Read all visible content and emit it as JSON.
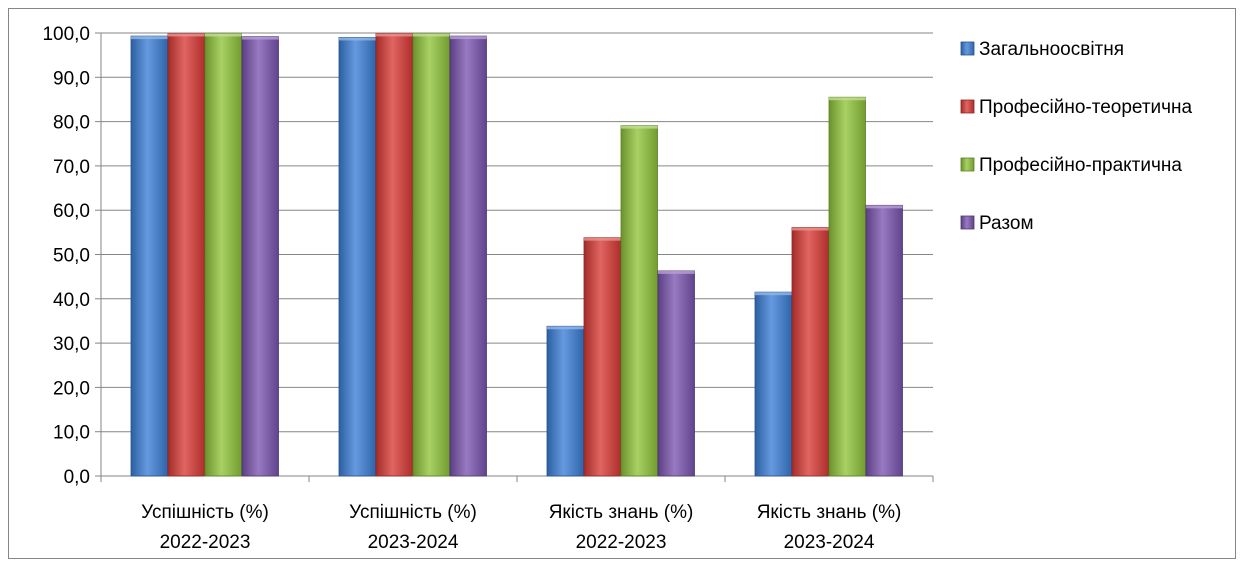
{
  "chart_data": {
    "type": "bar",
    "categories": [
      [
        "Успішність (%)",
        "2022-2023"
      ],
      [
        "Успішність (%)",
        "2023-2024"
      ],
      [
        "Якість знань (%)",
        "2022-2023"
      ],
      [
        "Якість знань (%)",
        "2023-2024"
      ]
    ],
    "series": [
      {
        "name": "Загальноосвітня",
        "color": "#3b7ed6",
        "values": [
          99.3,
          99.0,
          33.8,
          41.5
        ]
      },
      {
        "name": "Професійно-теоретична",
        "color": "#d93a36",
        "values": [
          99.9,
          99.9,
          53.8,
          56.1
        ]
      },
      {
        "name": "Професійно-практична",
        "color": "#8fc43a",
        "values": [
          99.9,
          99.9,
          79.1,
          85.5
        ]
      },
      {
        "name": "Разом",
        "color": "#7a54b0",
        "values": [
          99.2,
          99.3,
          46.3,
          61.1
        ]
      }
    ],
    "ylim": [
      0,
      100
    ],
    "yticks": [
      "0,0",
      "10,0",
      "20,0",
      "30,0",
      "40,0",
      "50,0",
      "60,0",
      "70,0",
      "80,0",
      "90,0",
      "100,0"
    ],
    "title": "",
    "xlabel": "",
    "ylabel": "",
    "grid": true,
    "legend_position": "right"
  }
}
